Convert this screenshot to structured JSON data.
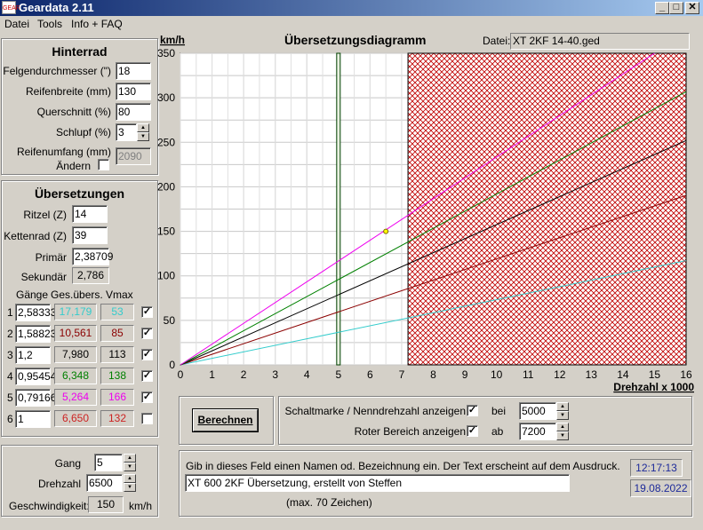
{
  "window": {
    "title": "Geardata 2.11",
    "icon_text": "GEAR",
    "buttons": {
      "minimize": "_",
      "maximize": "□",
      "close": "✕"
    }
  },
  "menu": [
    "Datei",
    "Tools",
    "Info + FAQ"
  ],
  "hinterrad": {
    "title": "Hinterrad",
    "felge_label": "Felgendurchmesser (\")",
    "felge": "18",
    "breite_label": "Reifenbreite (mm)",
    "breite": "130",
    "querschnitt_label": "Querschnitt (%)",
    "querschnitt": "80",
    "schlupf_label": "Schlupf (%)",
    "schlupf": "3",
    "umfang_label": "Reifenumfang (mm)",
    "aendern_label": "Ändern",
    "aendern_checked": false,
    "umfang": "2090"
  },
  "uebersetzungen": {
    "title": "Übersetzungen",
    "ritzel_label": "Ritzel (Z)",
    "ritzel": "14",
    "kettenrad_label": "Kettenrad (Z)",
    "kettenrad": "39",
    "primaer_label": "Primär",
    "primaer": "2,38709",
    "sekundaer_label": "Sekundär",
    "sekundaer": "2,786",
    "col_gaenge": "Gänge",
    "col_ges": "Ges.übers.",
    "col_vmax": "Vmax",
    "gears": [
      {
        "n": "1",
        "ratio": "2,58333",
        "ges": "17,179",
        "vmax": "53",
        "color": "#33cccc",
        "checked": true
      },
      {
        "n": "2",
        "ratio": "1,58823",
        "ges": "10,561",
        "vmax": "85",
        "color": "#8b0000",
        "checked": true
      },
      {
        "n": "3",
        "ratio": "1,2",
        "ges": "7,980",
        "vmax": "113",
        "color": "#000000",
        "checked": true
      },
      {
        "n": "4",
        "ratio": "0,95454",
        "ges": "6,348",
        "vmax": "138",
        "color": "#008000",
        "checked": true
      },
      {
        "n": "5",
        "ratio": "0,79166",
        "ges": "5,264",
        "vmax": "166",
        "color": "#ee00ee",
        "checked": true
      },
      {
        "n": "6",
        "ratio": "1",
        "ges": "6,650",
        "vmax": "132",
        "color": "#cc2222",
        "checked": false
      }
    ]
  },
  "calc": {
    "gang_label": "Gang",
    "gang": "5",
    "drehzahl_label": "Drehzahl",
    "drehzahl": "6500",
    "geschw_label": "Geschwindigkeit:",
    "geschw": "150",
    "unit": "km/h"
  },
  "diagram": {
    "title": "Übersetzungsdiagramm",
    "datei_label": "Datei:",
    "datei": "XT 2KF 14-40.ged"
  },
  "chart_data": {
    "type": "line",
    "ylabel": "km/h",
    "xlabel": "Drehzahl x 1000",
    "xlim": [
      0,
      16
    ],
    "ylim": [
      0,
      350
    ],
    "x_ticks": [
      0,
      1,
      2,
      3,
      4,
      5,
      6,
      7,
      8,
      9,
      10,
      11,
      12,
      13,
      14,
      15,
      16
    ],
    "y_ticks": [
      0,
      50,
      100,
      150,
      200,
      250,
      300,
      350
    ],
    "shift_mark_x": 5,
    "red_zone_from": 7.2,
    "marker": {
      "x": 6.5,
      "y": 150
    },
    "series": [
      {
        "gear": "1",
        "color": "#33cccc",
        "x": [
          0,
          16
        ],
        "y": [
          0,
          117.1
        ]
      },
      {
        "gear": "2",
        "color": "#8b0000",
        "x": [
          0,
          16
        ],
        "y": [
          0,
          190.4
        ]
      },
      {
        "gear": "3",
        "color": "#000000",
        "x": [
          0,
          16
        ],
        "y": [
          0,
          252
        ]
      },
      {
        "gear": "4",
        "color": "#008000",
        "x": [
          0,
          16
        ],
        "y": [
          0,
          306.8
        ]
      },
      {
        "gear": "5",
        "color": "#ee00ee",
        "x": [
          0,
          15
        ],
        "y": [
          0,
          350
        ]
      }
    ]
  },
  "options": {
    "berechnen": "Berechnen",
    "schaltmarke_label": "Schaltmarke / Nenndrehzahl anzeigen",
    "schaltmarke_checked": true,
    "bei_label": "bei",
    "bei": "5000",
    "rot_label": "Roter Bereich anzeigen",
    "rot_checked": true,
    "ab_label": "ab",
    "ab": "7200"
  },
  "footer": {
    "hint": "Gib in dieses Feld einen Namen od. Bezeichnung ein. Der Text erscheint auf dem Ausdruck.",
    "name": "XT 600 2KF Übersetzung, erstellt von Steffen",
    "max": "(max. 70 Zeichen)",
    "time": "12:17:13",
    "date": "19.08.2022"
  }
}
